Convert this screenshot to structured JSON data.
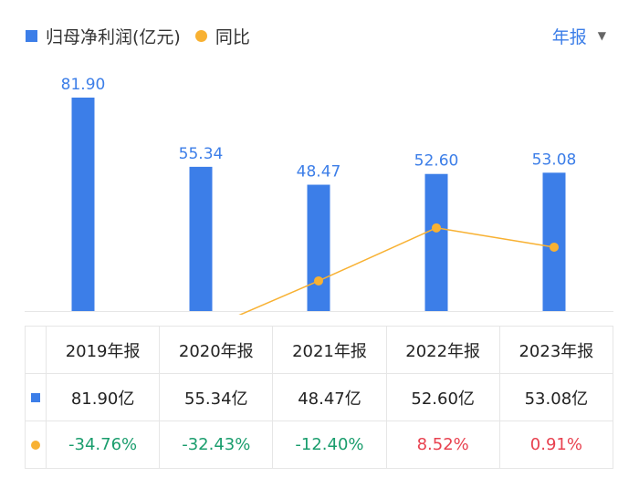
{
  "legend": {
    "bar_label": "归母净利润(亿元)",
    "line_label": "同比"
  },
  "period_selector": {
    "label": "年报",
    "icon": "caret-down-icon"
  },
  "colors": {
    "bar": "#3c7ee8",
    "line": "#f8b132",
    "positive": "#e8414f",
    "negative": "#1a9d6d",
    "accent": "#3c7ee8"
  },
  "chart_data": {
    "type": "bar",
    "categories": [
      "2019年报",
      "2020年报",
      "2021年报",
      "2022年报",
      "2023年报"
    ],
    "series": [
      {
        "name": "归母净利润(亿元)",
        "type": "bar",
        "values": [
          81.9,
          55.34,
          48.47,
          52.6,
          53.08
        ],
        "labels": [
          "81.90",
          "55.34",
          "48.47",
          "52.60",
          "53.08"
        ]
      },
      {
        "name": "同比",
        "type": "line",
        "values": [
          -34.76,
          -32.43,
          -12.4,
          8.52,
          0.91
        ]
      }
    ]
  },
  "table": {
    "header": [
      "2019年报",
      "2020年报",
      "2021年报",
      "2022年报",
      "2023年报"
    ],
    "profit_row": [
      "81.90亿",
      "55.34亿",
      "48.47亿",
      "52.60亿",
      "53.08亿"
    ],
    "yoy_row": [
      "-34.76%",
      "-32.43%",
      "-12.40%",
      "8.52%",
      "0.91%"
    ]
  }
}
